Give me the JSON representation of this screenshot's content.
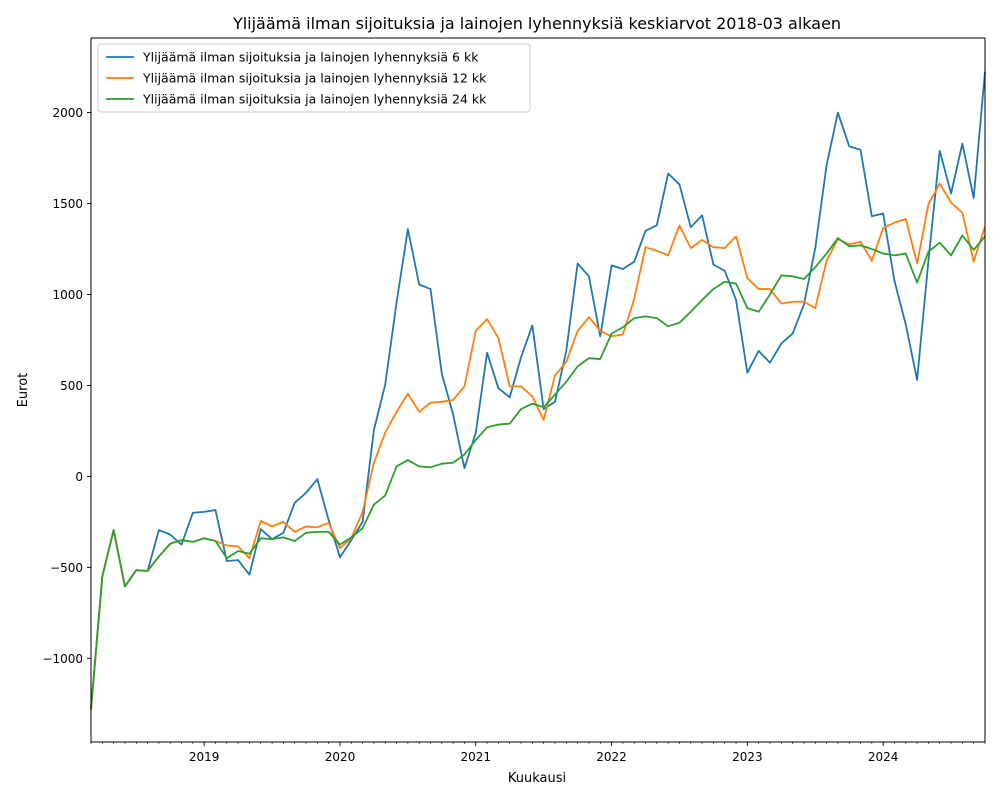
{
  "chart_data": {
    "type": "line",
    "title": "Ylijäämä ilman sijoituksia ja lainojen lyhennyksiä keskiarvot 2018-03 alkaen",
    "xlabel": "Kuukausi",
    "ylabel": "Eurot",
    "x_start": "2018-03",
    "x_end": "2024-10",
    "xlim": [
      "2018-03",
      "2024-10"
    ],
    "ylim": [
      -1460,
      2410
    ],
    "x_ticks": [
      "2019",
      "2020",
      "2021",
      "2022",
      "2023",
      "2024"
    ],
    "y_ticks": [
      "−1000",
      "−500",
      "0",
      "500",
      "1000",
      "1500",
      "2000"
    ],
    "y_tick_values": [
      -1000,
      -500,
      0,
      500,
      1000,
      1500,
      2000
    ],
    "legend_position": "top-left",
    "grid": false,
    "series": [
      {
        "name": "Ylijäämä ilman sijoituksia ja lainojen lyhennyksiä 6 kk",
        "color": "#1f77b4",
        "values": [
          -1280,
          -550,
          -295,
          -605,
          -515,
          -520,
          -295,
          -320,
          -375,
          -200,
          -195,
          -185,
          -465,
          -460,
          -540,
          -290,
          -345,
          -310,
          -145,
          -90,
          -15,
          -240,
          -445,
          -350,
          -250,
          255,
          505,
          955,
          1360,
          1055,
          1030,
          565,
          340,
          45,
          240,
          680,
          485,
          435,
          655,
          830,
          370,
          410,
          690,
          1170,
          1100,
          770,
          1160,
          1140,
          1180,
          1350,
          1380,
          1665,
          1605,
          1370,
          1435,
          1165,
          1130,
          970,
          570,
          690,
          625,
          730,
          785,
          945,
          1255,
          1710,
          2000,
          1815,
          1795,
          1430,
          1445,
          1075,
          835,
          530,
          1185,
          1790,
          1555,
          1830,
          1530,
          2225
        ]
      },
      {
        "name": "Ylijäämä ilman sijoituksia ja lainojen lyhennyksiä 12 kk",
        "color": "#ff7f0e",
        "values": [
          -1280,
          -550,
          -295,
          -605,
          -515,
          -520,
          -440,
          -370,
          -350,
          -360,
          -340,
          -355,
          -380,
          -385,
          -450,
          -245,
          -275,
          -250,
          -305,
          -275,
          -280,
          -255,
          -395,
          -340,
          -195,
          75,
          240,
          355,
          455,
          355,
          405,
          410,
          420,
          495,
          800,
          865,
          760,
          495,
          495,
          440,
          310,
          555,
          630,
          800,
          875,
          800,
          770,
          780,
          975,
          1260,
          1240,
          1215,
          1380,
          1255,
          1300,
          1260,
          1255,
          1320,
          1090,
          1030,
          1030,
          950,
          960,
          960,
          925,
          1185,
          1305,
          1275,
          1290,
          1185,
          1365,
          1395,
          1415,
          1170,
          1495,
          1610,
          1505,
          1450,
          1180,
          1375
        ]
      },
      {
        "name": "Ylijäämä ilman sijoituksia ja lainojen lyhennyksiä 24 kk",
        "color": "#2ca02c",
        "values": [
          -1280,
          -550,
          -295,
          -605,
          -515,
          -520,
          -440,
          -370,
          -350,
          -360,
          -340,
          -355,
          -450,
          -410,
          -425,
          -340,
          -345,
          -335,
          -355,
          -310,
          -305,
          -305,
          -375,
          -335,
          -285,
          -155,
          -105,
          55,
          90,
          55,
          50,
          70,
          75,
          120,
          200,
          270,
          285,
          290,
          370,
          400,
          380,
          450,
          520,
          605,
          650,
          645,
          785,
          820,
          870,
          880,
          870,
          825,
          845,
          905,
          970,
          1030,
          1070,
          1060,
          925,
          905,
          1000,
          1105,
          1100,
          1085,
          1150,
          1225,
          1310,
          1265,
          1270,
          1250,
          1225,
          1215,
          1225,
          1065,
          1235,
          1285,
          1215,
          1325,
          1245,
          1320
        ]
      }
    ]
  }
}
